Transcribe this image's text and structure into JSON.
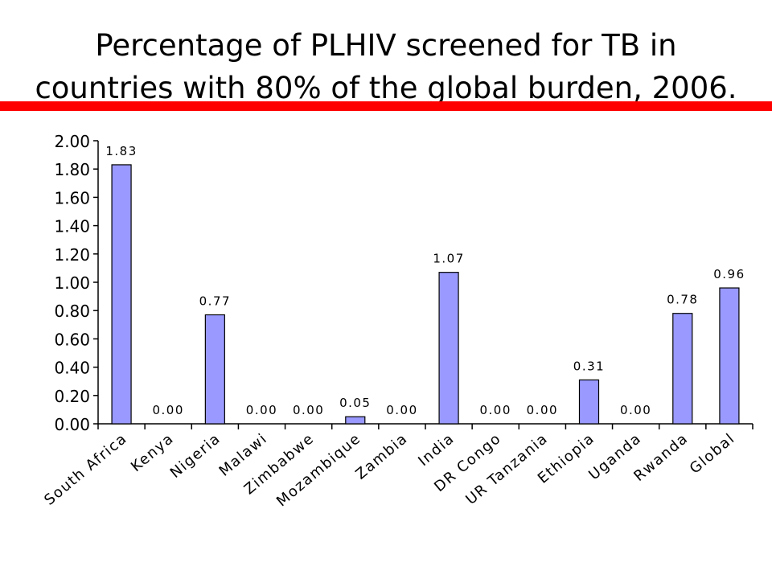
{
  "title_lines": [
    "Percentage of PLHIV screened for TB in",
    "countries with 80% of the global burden, 2006."
  ],
  "colors": {
    "bar_fill": "#9999ff",
    "bar_stroke": "#000000",
    "title_rule": "#ff0000"
  },
  "chart_data": {
    "type": "bar",
    "title": "Percentage of PLHIV screened for TB in countries with 80% of the global burden, 2006.",
    "categories": [
      "South Africa",
      "Kenya",
      "Nigeria",
      "Malawi",
      "Zimbabwe",
      "Mozambique",
      "Zambia",
      "India",
      "DR Congo",
      "UR Tanzania",
      "Ethiopia",
      "Uganda",
      "Rwanda",
      "Global"
    ],
    "values": [
      1.83,
      0.0,
      0.77,
      0.0,
      0.0,
      0.05,
      0.0,
      1.07,
      0.0,
      0.0,
      0.31,
      0.0,
      0.78,
      0.96
    ],
    "data_labels": [
      "1.83",
      "0.00",
      "0.77",
      "0.00",
      "0.00",
      "0.05",
      "0.00",
      "1.07",
      "0.00",
      "0.00",
      "0.31",
      "0.00",
      "0.78",
      "0.96"
    ],
    "yticks": [
      "0.00",
      "0.20",
      "0.40",
      "0.60",
      "0.80",
      "1.00",
      "1.20",
      "1.40",
      "1.60",
      "1.80",
      "2.00"
    ],
    "ylim": [
      0,
      2.0
    ],
    "xlabel": "",
    "ylabel": "",
    "grid": false,
    "legend": false
  }
}
